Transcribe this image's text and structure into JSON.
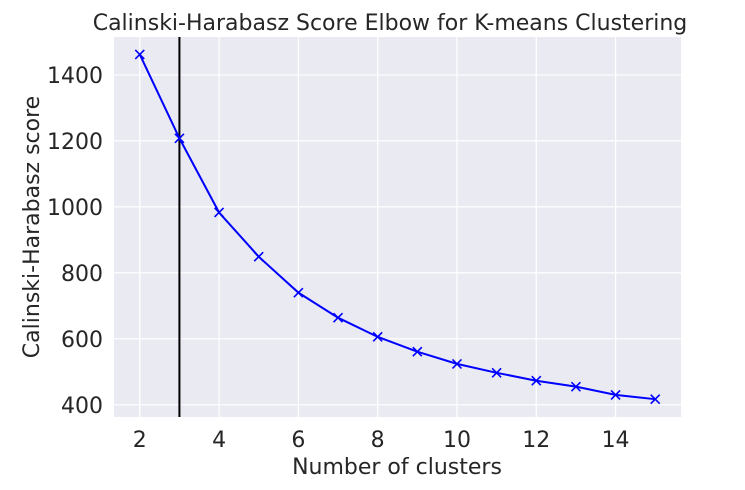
{
  "chart_data": {
    "type": "line",
    "title": "Calinski-Harabasz Score Elbow for K-means Clustering",
    "xlabel": "Number of clusters",
    "ylabel": "Calinski-Harabasz score",
    "xlim": [
      1.35,
      15.65
    ],
    "ylim": [
      363,
      1515
    ],
    "xticks": [
      2,
      4,
      6,
      8,
      10,
      12,
      14
    ],
    "yticks": [
      400,
      600,
      800,
      1000,
      1200,
      1400
    ],
    "grid": true,
    "background": "#eaeaf2",
    "series": [
      {
        "color": "#0000ff",
        "marker": "x",
        "x": [
          2,
          3,
          4,
          5,
          6,
          7,
          8,
          9,
          10,
          11,
          12,
          13,
          14,
          15
        ],
        "values": [
          1462,
          1208,
          983,
          849,
          740,
          664,
          606,
          561,
          524,
          497,
          473,
          455,
          430,
          417
        ]
      }
    ],
    "vline": {
      "x": 3,
      "color": "#000000"
    }
  }
}
